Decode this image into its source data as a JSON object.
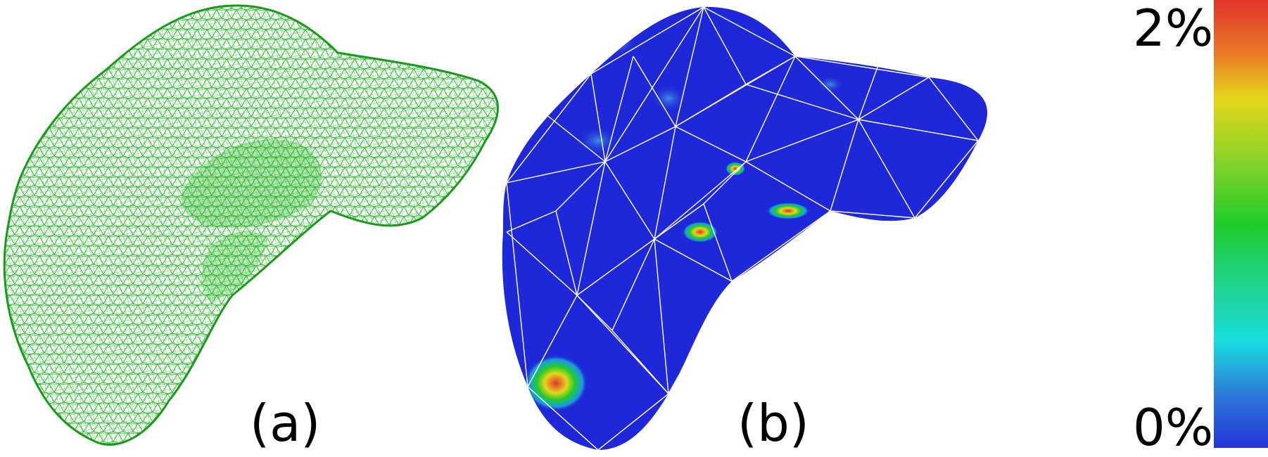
{
  "panels": [
    {
      "id": "a",
      "label": "(a)",
      "rendering": "wireframe-mesh",
      "color": "#22b322"
    },
    {
      "id": "b",
      "label": "(b)",
      "rendering": "colormapped-surface-with-coarse-mesh",
      "base_color": "#1e28d8",
      "mesh_color": "#ffffff"
    }
  ],
  "colorbar": {
    "max_label": "2%",
    "min_label": "0%",
    "colors": [
      "#e4332a",
      "#e87a25",
      "#e6d61c",
      "#7ad22a",
      "#1ecb2a",
      "#20d28f",
      "#18dede",
      "#2d7bd9",
      "#2433d8"
    ]
  }
}
